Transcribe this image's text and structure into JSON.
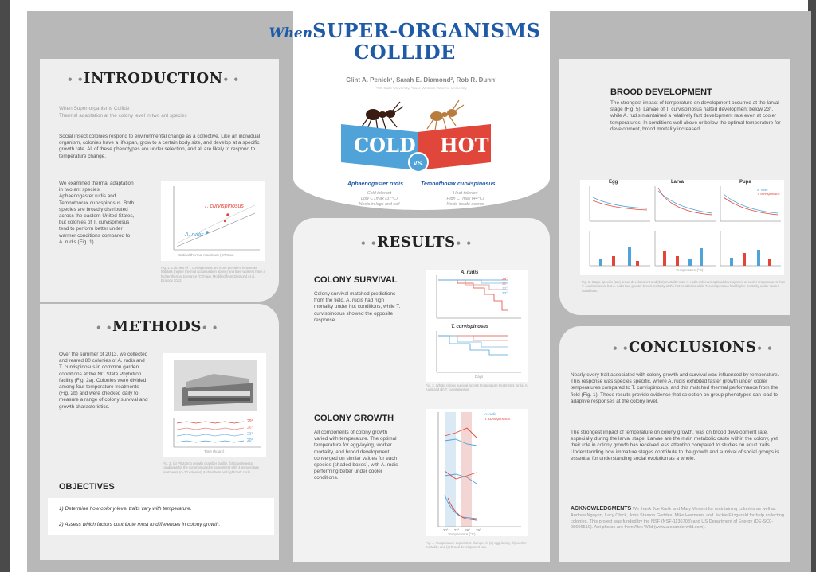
{
  "title": {
    "prefix": "When",
    "line1": "SUPER-ORGANISMS",
    "line2": "COLLIDE"
  },
  "authors": "Clint A. Penick¹, Sarah E. Diamond², Rob R. Dunn¹",
  "affiliations": "¹NC State University, ²Case Western Reserve University",
  "badges": {
    "cold": "COLD",
    "vs": "VS.",
    "hot": "HOT"
  },
  "species": {
    "cold": {
      "name": "Aphaenogaster rudis",
      "desc1": "Cold tolerant",
      "desc2": "Low CTmax (37°C)",
      "desc3": "Nests in logs and soil"
    },
    "hot": {
      "name": "Temnothorax curvispinosus",
      "desc1": "Heat tolerant",
      "desc2": "High CTmax (44°C)",
      "desc3": "Nests inside acorns"
    }
  },
  "intro": {
    "heading": "INTRODUCTION",
    "subtitle1": "When Super-organisms Collide",
    "subtitle2": "Thermal adaptation at the colony level in two ant species",
    "para1": "Social insect colonies respond to environmental change as a collective. Like an individual organism, colonies have a lifespan, grow to a certain body size, and develop at a specific growth rate. All of these phenotypes are under selection, and all are likely to respond to temperature change.",
    "para2": "We examined thermal adaptation in two ant species: Aphaenogaster rudis and Temnothorax curvispinosus. Both species are broadly distributed across the eastern United States, but colonies of T. curvispinosus tend to perform better under warmer conditions compared to A. rudis (Fig. 1).",
    "fig_label_hot": "T. curvispinosus",
    "fig_label_cold": "A. rudis",
    "fig_xlabel": "Critical thermal maximum (CTmax)",
    "caption": "Fig. 1. Colonies of T. curvispinosus are more prevalent in warmer habitats (higher thermal accumulation above) and their workers have a higher thermal tolerance (CTmax). Modified from Diamond et al. Ecology 2012."
  },
  "methods": {
    "heading": "METHODS",
    "para": "Over the summer of 2013, we collected and reared 80 colonies of A. rudis and T. curvispinosus in common garden conditions at the NC State Phytotron facility (Fig. 2a). Colonies were divided among four temperature treatments (Fig. 2b) and were checked daily to measure a range of colony survival and growth characteristics.",
    "caption": "Fig. 2. (a) Phytotron growth chamber facility. (b) Experimental conditions for the common garden experiment with 4 temperature treatments (n=20 colonies) & chambers and light/dark cycle.",
    "fig_xlabel": "Time (hours)",
    "temp_labels": [
      "29°",
      "26°",
      "23°",
      "20°"
    ]
  },
  "objectives": {
    "heading": "OBJECTIVES",
    "items": [
      "1) Determine how colony-level traits vary with temperature.",
      "2) Assess which factors contribute most to differences in colony growth."
    ]
  },
  "results": {
    "heading": "RESULTS",
    "survival": {
      "heading": "COLONY SURVIVAL",
      "para": "Colony survival matched predictions from the field. A. rudis had high mortality under hot conditions, while T. curvispinosus showed the opposite response.",
      "panel_a": "A. rudis",
      "panel_b": "T. curvispinosus",
      "ylabel": "% Colony survival",
      "xlabel": "Days",
      "legend": [
        "29°",
        "26°",
        "23°",
        "20°"
      ],
      "caption": "Fig. 3. Whole colony survival across temperature treatments for (a) A. rudis and (b) T. curvispinosus."
    },
    "growth": {
      "heading": "COLONY GROWTH",
      "para": "All components of colony growth varied with temperature. The optimal temperature for egg-laying, worker mortality, and brood development converged on similar values for each species (shaded boxes), with A. rudis performing better under cooler conditions.",
      "legend": [
        "A. rudis",
        "T. curvispinosus"
      ],
      "xlabel": "Temperature (°C)",
      "xticks": [
        "20°",
        "23°",
        "26°",
        "29°"
      ],
      "caption": "Fig. 4. Temperature-dependent changes in (a) egg-laying, (b) worker mortality, and (c) brood development rate."
    }
  },
  "brood": {
    "heading": "BROOD DEVELOPMENT",
    "para": "The strongest impact of temperature on development occurred at the larval stage (Fig. 5). Larvae of T. curvispinosus halted development below 23°, while A. rudis maintained a relatively fast development rate even at cooler temperatures. In conditions well above or below the optimal temperature for development, brood mortality increased.",
    "stages": [
      "Egg",
      "Larva",
      "Pupa"
    ],
    "legend": [
      "A. rudis",
      "T. curvispinosus"
    ],
    "xlabel": "Temperature (°C)",
    "caption": "Fig. 5. Stage-specific (top) brood development and (bot) mortality rate. A. rudis achieves optimal development at cooler temperatures than T. curvispinosus, but A. rudis had greater brood mortality at the hot conditions while T. curvispinosus had higher mortality under cooler conditions."
  },
  "conclusions": {
    "heading": "CONCLUSIONS",
    "para1": "Nearly every trait associated with colony growth and survival was influenced by temperature. This response was species specific, where A. rudis exhibited faster growth under cooler temperatures compared to T. curvispinosus, and this matched thermal performance from the field (Fig. 1). These results provide evidence that selection on group phenotypes can lead to adaptive responses at the colony level.",
    "para2": "The strongest impact of temperature on colony growth, was on brood development rate, especially during the larval stage. Larvae are the main metabolic caste within the colony, yet their role in colony growth has received less attention compared to studies on adult traits. Understanding how immature stages contribute to the growth and survival of social groups is essential for understanding social evolution as a whole."
  },
  "acknowledgments": {
    "heading": "ACKNOWLEDGMENTS",
    "text": "We thank Joe Karik and Mary Vincent for maintaining colonies as well as Andrew Nguyen, Lacy Chick, John Stamon Geddes, Mike Hermann, and Jackie Fitzgerald for help collecting colonies. This project was funded by the NSF (NSF-1136703) and US Department of Energy (DE-SC0-08696510). Ant photos are from Alex Wild (www.alexanderwild.com)."
  },
  "colors": {
    "accent": "#1f5aa6",
    "hot": "#e0463a",
    "cold": "#4fa3d9",
    "panel": "#eeeeee",
    "frame": "#b8b8b8"
  }
}
